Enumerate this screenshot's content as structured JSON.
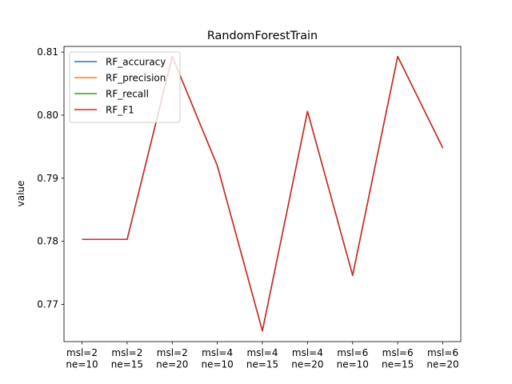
{
  "chart_data": {
    "type": "line",
    "title": "RandomForestTrain",
    "xlabel": "",
    "ylabel": "value",
    "categories": [
      [
        "msl=2",
        "ne=10"
      ],
      [
        "msl=2",
        "ne=15"
      ],
      [
        "msl=2",
        "ne=20"
      ],
      [
        "msl=4",
        "ne=10"
      ],
      [
        "msl=4",
        "ne=15"
      ],
      [
        "msl=4",
        "ne=20"
      ],
      [
        "msl=6",
        "ne=10"
      ],
      [
        "msl=6",
        "ne=15"
      ],
      [
        "msl=6",
        "ne=20"
      ]
    ],
    "ylim": [
      0.7641,
      0.8109
    ],
    "yticks": [
      "0.77",
      "0.78",
      "0.79",
      "0.80",
      "0.81"
    ],
    "grid": false,
    "legend_position": "top-left",
    "series": [
      {
        "name": "RF_accuracy",
        "color": "#1f77b4",
        "values": [
          0.7803,
          0.7803,
          0.8093,
          0.792,
          0.7658,
          0.8006,
          0.7746,
          0.8093,
          0.7948
        ]
      },
      {
        "name": "RF_precision",
        "color": "#ff7f0e",
        "values": [
          0.7803,
          0.7803,
          0.8093,
          0.792,
          0.7658,
          0.8006,
          0.7746,
          0.8093,
          0.7948
        ]
      },
      {
        "name": "RF_recall",
        "color": "#2ca02c",
        "values": [
          0.7803,
          0.7803,
          0.8093,
          0.792,
          0.7658,
          0.8006,
          0.7746,
          0.8093,
          0.7948
        ]
      },
      {
        "name": "RF_F1",
        "color": "#d62728",
        "values": [
          0.7803,
          0.7803,
          0.8093,
          0.792,
          0.7658,
          0.8006,
          0.7746,
          0.8093,
          0.7948
        ]
      }
    ]
  }
}
